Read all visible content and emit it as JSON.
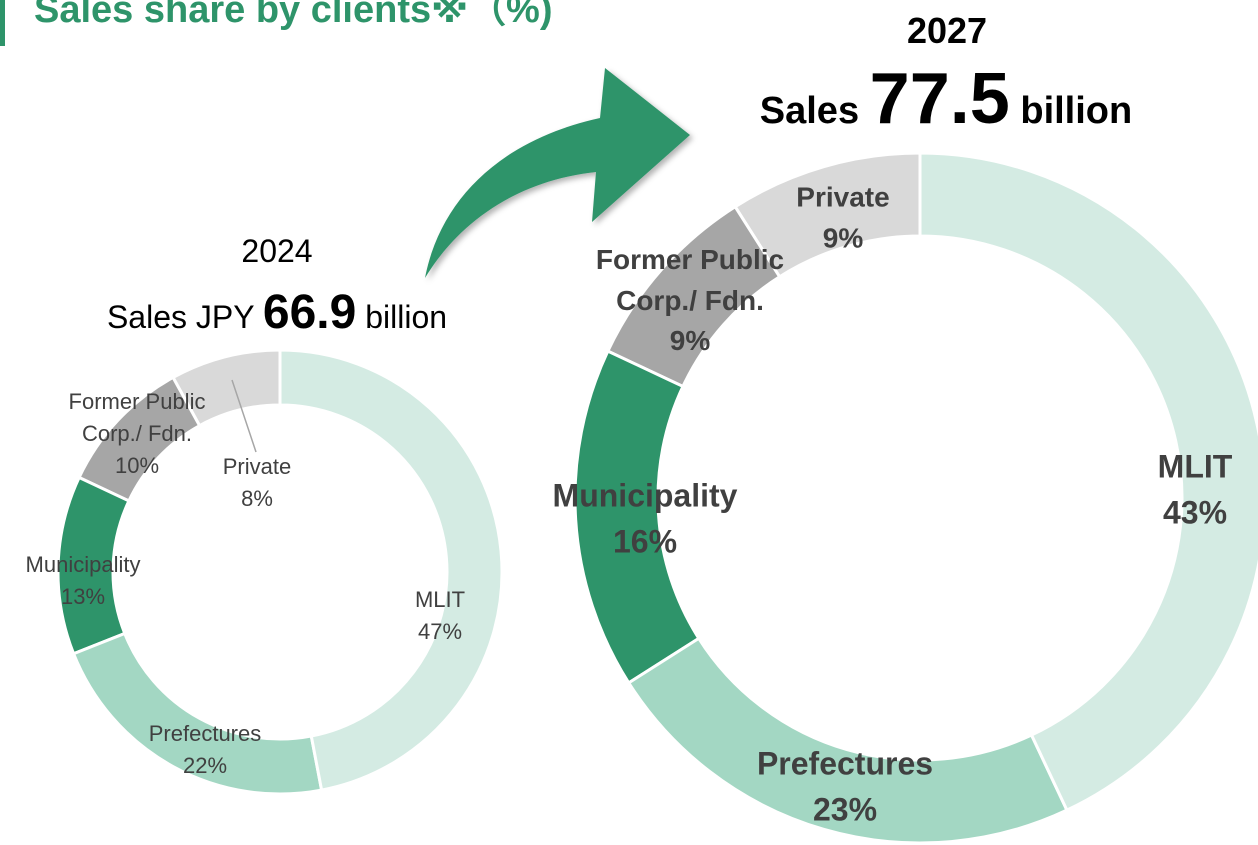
{
  "title": "Sales share by clients※（%)",
  "chart_data": [
    {
      "type": "donut",
      "title": "2024",
      "sales_prefix": "Sales JPY",
      "sales_value": 66.9,
      "sales_unit": "billion",
      "categories": [
        "MLIT",
        "Prefectures",
        "Municipality",
        "Former Public Corp./ Fdn.",
        "Private"
      ],
      "values": [
        47,
        22,
        13,
        10,
        8
      ],
      "value_labels": [
        "47%",
        "22%",
        "13%",
        "10%",
        "8%"
      ],
      "colors": [
        "#d4ebe3",
        "#a3d7c3",
        "#2e946a",
        "#a6a6a6",
        "#d9d9d9"
      ]
    },
    {
      "type": "donut",
      "title": "2027",
      "sales_prefix": "Sales",
      "sales_value": 77.5,
      "sales_unit": "billion",
      "categories": [
        "MLIT",
        "Prefectures",
        "Municipality",
        "Former Public Corp./ Fdn.",
        "Private"
      ],
      "values": [
        43,
        23,
        16,
        9,
        9
      ],
      "value_labels": [
        "43%",
        "23%",
        "16%",
        "9%",
        "9%"
      ],
      "colors": [
        "#d4ebe3",
        "#a3d7c3",
        "#2e946a",
        "#a6a6a6",
        "#d9d9d9"
      ]
    }
  ]
}
